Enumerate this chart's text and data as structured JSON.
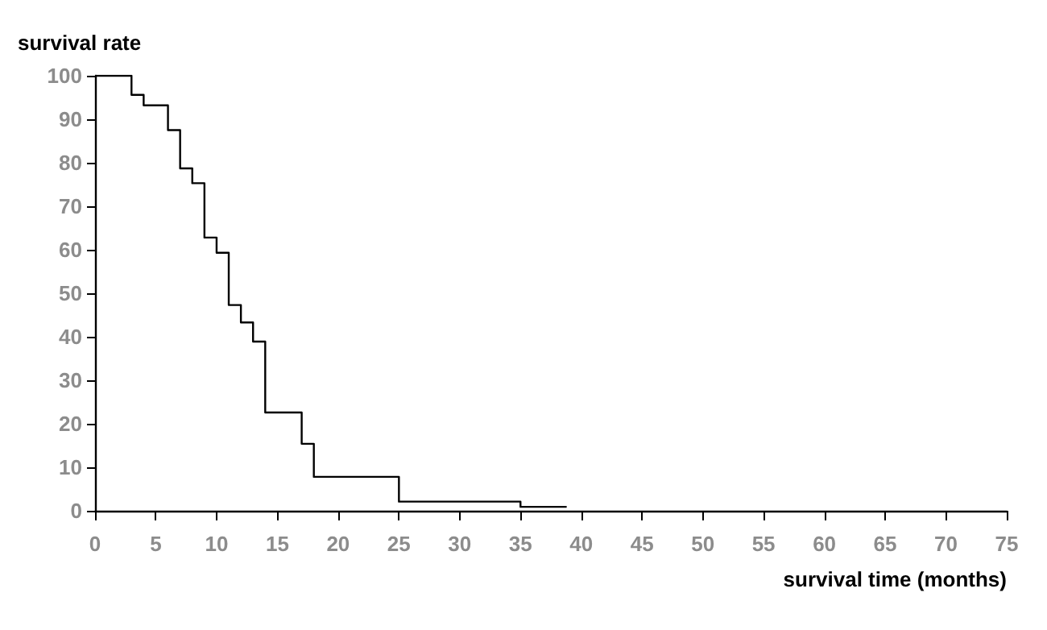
{
  "chart_data": {
    "type": "step",
    "xlabel": "survival time (months)",
    "ylabel": "survival rate",
    "x": [
      0,
      3,
      4,
      6,
      7,
      8,
      9,
      10,
      11,
      12,
      13,
      14,
      17,
      18,
      25,
      35,
      38.8
    ],
    "series": [
      {
        "color": "#000000",
        "values": [
          100,
          95.6,
          93.2,
          87.5,
          78.7,
          75.3,
          62.8,
          59.3,
          47.3,
          43.3,
          38.9,
          22.6,
          15.4,
          7.8,
          2.1,
          0.9,
          0.9
        ]
      }
    ],
    "xlim": [
      0,
      75
    ],
    "xticks": [
      0,
      5,
      10,
      15,
      20,
      25,
      30,
      35,
      40,
      45,
      50,
      55,
      60,
      65,
      70,
      75
    ],
    "ylim": [
      0,
      100
    ],
    "yticks": [
      0,
      10,
      20,
      30,
      40,
      50,
      60,
      70,
      80,
      90,
      100
    ],
    "grid": false,
    "marker": "none",
    "line_style": "solid"
  }
}
